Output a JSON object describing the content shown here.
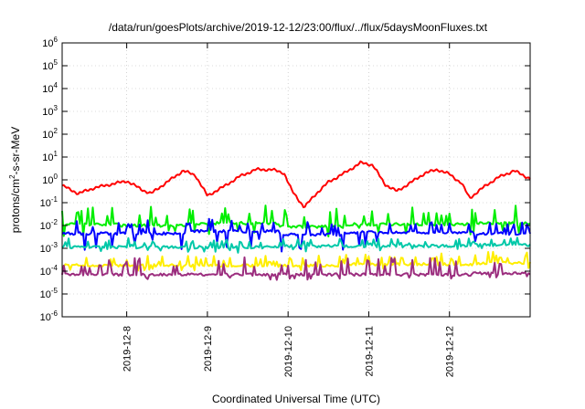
{
  "chart_data": {
    "type": "line",
    "title": "/data/run/goesPlots/archive/2019-12-12/23:00/flux/../flux/5daysMoonFluxes.txt",
    "xlabel": "Coordinated Universal Time (UTC)",
    "ylabel": {
      "base": "protons/cm",
      "sup": "2",
      "rest": "-s-sr-MeV"
    },
    "yscale": "log",
    "ylim_exp": [
      -6,
      6
    ],
    "y_tick_exponents": [
      -6,
      -5,
      -4,
      -3,
      -2,
      -1,
      0,
      1,
      2,
      3,
      4,
      5,
      6
    ],
    "y_tick_base": "10",
    "x_domain_days": [
      -0.8,
      5.0
    ],
    "x_ticks": [
      {
        "day": 0,
        "label": "2019-12-8"
      },
      {
        "day": 1,
        "label": "2019-12-9"
      },
      {
        "day": 2,
        "label": "2019-12-10"
      },
      {
        "day": 3,
        "label": "2019-12-11"
      },
      {
        "day": 4,
        "label": "2019-12-12"
      }
    ],
    "grid": true,
    "series": [
      {
        "color": "#ff0000",
        "kind": "smooth",
        "points_log10": [
          [
            -0.8,
            -0.25
          ],
          [
            -0.6,
            -0.6
          ],
          [
            -0.4,
            -0.35
          ],
          [
            -0.2,
            -0.2
          ],
          [
            0,
            -0.05
          ],
          [
            0.2,
            -0.45
          ],
          [
            0.3,
            -0.6
          ],
          [
            0.5,
            -0.1
          ],
          [
            0.7,
            0.4
          ],
          [
            0.85,
            0.2
          ],
          [
            1.0,
            -0.7
          ],
          [
            1.2,
            -0.3
          ],
          [
            1.4,
            0.15
          ],
          [
            1.6,
            0.45
          ],
          [
            1.8,
            0.45
          ],
          [
            1.95,
            0.3
          ],
          [
            2.05,
            -0.5
          ],
          [
            2.2,
            -1.2
          ],
          [
            2.35,
            -0.6
          ],
          [
            2.5,
            -0.1
          ],
          [
            2.7,
            0.3
          ],
          [
            2.9,
            0.75
          ],
          [
            3.05,
            0.65
          ],
          [
            3.2,
            -0.2
          ],
          [
            3.35,
            -0.5
          ],
          [
            3.55,
            -0.05
          ],
          [
            3.7,
            0.3
          ],
          [
            3.85,
            0.45
          ],
          [
            4.0,
            0.25
          ],
          [
            4.15,
            -0.15
          ],
          [
            4.25,
            -0.8
          ],
          [
            4.45,
            -0.25
          ],
          [
            4.6,
            0.1
          ],
          [
            4.8,
            0.4
          ],
          [
            5.0,
            0.05
          ]
        ]
      },
      {
        "color": "#00ee00",
        "kind": "noisy",
        "base_log10": -1.95,
        "spike_log10": 0.8,
        "dip_log10": 0.5,
        "step_offsets": [
          [
            -0.8,
            0.0
          ],
          [
            -0.1,
            -0.05
          ],
          [
            0.75,
            0.05
          ],
          [
            1.9,
            -0.1
          ],
          [
            2.7,
            0.0
          ],
          [
            4.3,
            0.05
          ]
        ]
      },
      {
        "color": "#0000ff",
        "kind": "noisy",
        "base_log10": -2.35,
        "spike_log10": 0.55,
        "dip_log10": 0.7,
        "step_offsets": [
          [
            -0.8,
            0.0
          ],
          [
            0.75,
            0.1
          ],
          [
            1.9,
            -0.05
          ],
          [
            2.7,
            0.05
          ],
          [
            4.3,
            0.0
          ]
        ]
      },
      {
        "color": "#00c8a8",
        "kind": "noisy",
        "base_log10": -2.95,
        "spike_log10": 0.35,
        "dip_log10": 0.2,
        "step_offsets": [
          [
            -0.8,
            0.0
          ],
          [
            1.9,
            0.05
          ],
          [
            4.3,
            0.1
          ]
        ]
      },
      {
        "color": "#ffee00",
        "kind": "noisy",
        "base_log10": -3.75,
        "spike_log10": 0.45,
        "dip_log10": 0.25,
        "step_offsets": [
          [
            -0.8,
            0.0
          ],
          [
            2.7,
            0.05
          ],
          [
            4.3,
            0.1
          ]
        ]
      },
      {
        "color": "#9b2d7e",
        "kind": "noisy",
        "base_log10": -4.15,
        "spike_log10": 0.75,
        "dip_log10": 0.2,
        "step_offsets": [
          [
            -0.8,
            0.0
          ],
          [
            4.3,
            0.05
          ]
        ]
      }
    ]
  }
}
